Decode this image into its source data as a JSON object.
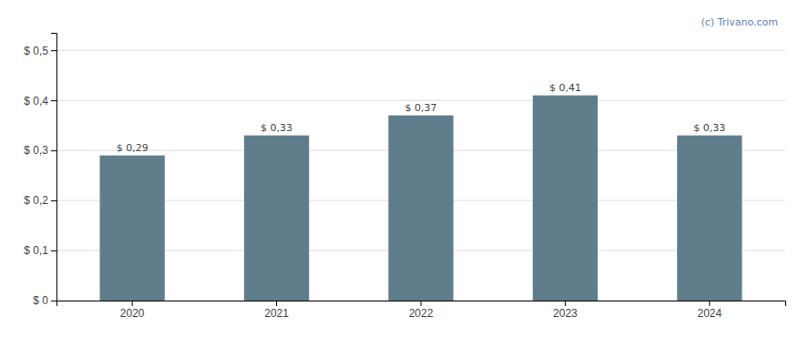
{
  "chart_data": {
    "type": "bar",
    "categories": [
      "2020",
      "2021",
      "2022",
      "2023",
      "2024"
    ],
    "values": [
      0.29,
      0.33,
      0.37,
      0.41,
      0.33
    ],
    "value_labels": [
      "$ 0,29",
      "$ 0,33",
      "$ 0,37",
      "$ 0,41",
      "$ 0,33"
    ],
    "color": "#607D8B",
    "ylim": [
      0,
      0.535
    ],
    "yticks": [
      {
        "value": 0,
        "label": "$ 0"
      },
      {
        "value": 0.1,
        "label": "$ 0,1"
      },
      {
        "value": 0.2,
        "label": "$ 0,2"
      },
      {
        "value": 0.3,
        "label": "$ 0,3"
      },
      {
        "value": 0.4,
        "label": "$ 0,4"
      },
      {
        "value": 0.5,
        "label": "$ 0,5"
      }
    ],
    "grid": true,
    "data_labels": true,
    "annotations": [
      {
        "text": "(c) Trivano.com",
        "color": "#5B7FC1"
      }
    ]
  }
}
